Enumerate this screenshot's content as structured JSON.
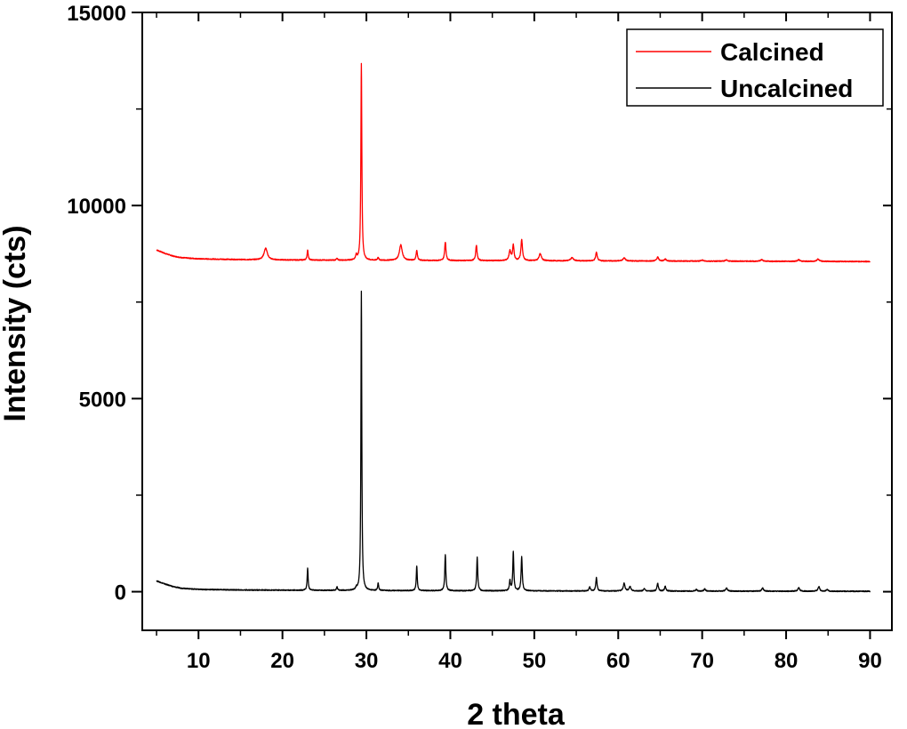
{
  "chart_data": {
    "type": "line",
    "title": "",
    "xlabel": "2 theta",
    "ylabel": "Intensity (cts)",
    "xlim": [
      3.3,
      92.6
    ],
    "ylim": [
      -1000,
      15000
    ],
    "xticks": [
      10,
      20,
      30,
      40,
      50,
      60,
      70,
      80,
      90
    ],
    "yticks": [
      0,
      5000,
      10000,
      15000
    ],
    "legend_position": "top-right",
    "series": [
      {
        "name": "Calcined",
        "color": "#ff0000",
        "baseline": [
          [
            5,
            8850
          ],
          [
            6,
            8760
          ],
          [
            7,
            8690
          ],
          [
            8,
            8650
          ],
          [
            10,
            8620
          ],
          [
            15,
            8600
          ],
          [
            20,
            8590
          ],
          [
            30,
            8580
          ],
          [
            50,
            8570
          ],
          [
            70,
            8560
          ],
          [
            90,
            8550
          ]
        ],
        "peaks": [
          [
            18.0,
            300,
            0.35
          ],
          [
            23.0,
            250,
            0.12
          ],
          [
            26.5,
            40,
            0.15
          ],
          [
            28.8,
            120,
            0.15
          ],
          [
            29.4,
            5100,
            0.1
          ],
          [
            31.4,
            80,
            0.12
          ],
          [
            34.1,
            400,
            0.3
          ],
          [
            36.0,
            250,
            0.14
          ],
          [
            39.4,
            480,
            0.14
          ],
          [
            43.1,
            400,
            0.14
          ],
          [
            47.1,
            250,
            0.2
          ],
          [
            47.5,
            400,
            0.15
          ],
          [
            48.5,
            550,
            0.16
          ],
          [
            50.7,
            180,
            0.25
          ],
          [
            54.5,
            80,
            0.3
          ],
          [
            57.4,
            220,
            0.16
          ],
          [
            60.7,
            80,
            0.25
          ],
          [
            64.7,
            100,
            0.2
          ],
          [
            65.6,
            50,
            0.2
          ],
          [
            70.0,
            30,
            0.2
          ],
          [
            72.9,
            30,
            0.25
          ],
          [
            77.1,
            40,
            0.25
          ],
          [
            81.5,
            40,
            0.25
          ],
          [
            83.8,
            60,
            0.25
          ]
        ]
      },
      {
        "name": "Uncalcined",
        "color": "#000000",
        "baseline": [
          [
            5,
            280
          ],
          [
            6,
            200
          ],
          [
            7,
            130
          ],
          [
            8,
            90
          ],
          [
            10,
            60
          ],
          [
            15,
            45
          ],
          [
            20,
            40
          ],
          [
            30,
            30
          ],
          [
            50,
            20
          ],
          [
            70,
            15
          ],
          [
            90,
            10
          ]
        ],
        "peaks": [
          [
            23.0,
            570,
            0.1
          ],
          [
            26.5,
            100,
            0.1
          ],
          [
            28.8,
            60,
            0.12
          ],
          [
            29.4,
            7750,
            0.09
          ],
          [
            31.4,
            200,
            0.1
          ],
          [
            36.0,
            640,
            0.1
          ],
          [
            39.4,
            930,
            0.11
          ],
          [
            43.2,
            870,
            0.11
          ],
          [
            47.1,
            260,
            0.12
          ],
          [
            47.5,
            1000,
            0.11
          ],
          [
            48.5,
            880,
            0.12
          ],
          [
            56.6,
            100,
            0.15
          ],
          [
            57.4,
            340,
            0.13
          ],
          [
            60.7,
            200,
            0.18
          ],
          [
            61.4,
            120,
            0.18
          ],
          [
            63.1,
            60,
            0.15
          ],
          [
            64.7,
            200,
            0.14
          ],
          [
            65.6,
            120,
            0.14
          ],
          [
            69.3,
            40,
            0.15
          ],
          [
            70.3,
            60,
            0.15
          ],
          [
            72.9,
            80,
            0.18
          ],
          [
            77.2,
            80,
            0.18
          ],
          [
            81.5,
            90,
            0.18
          ],
          [
            83.9,
            120,
            0.18
          ],
          [
            84.9,
            40,
            0.18
          ]
        ]
      }
    ]
  }
}
